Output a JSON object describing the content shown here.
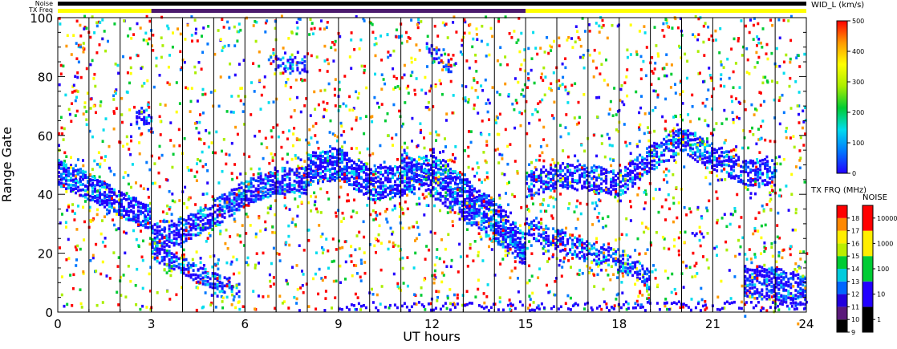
{
  "chart_data": {
    "type": "heatmap",
    "xlabel": "UT hours",
    "ylabel": "Range Gate",
    "xlim": [
      0,
      24
    ],
    "ylim": [
      0,
      100
    ],
    "x_ticks": [
      "0",
      "3",
      "6",
      "9",
      "12",
      "15",
      "18",
      "21",
      "24"
    ],
    "y_ticks": [
      "0",
      "20",
      "40",
      "60",
      "80",
      "100"
    ],
    "scan_boundaries_hours": [
      1,
      2,
      3,
      4,
      5,
      6,
      7,
      8,
      9,
      10,
      11,
      12,
      13,
      14,
      15,
      16,
      17,
      18,
      19,
      20,
      21,
      22,
      23
    ],
    "noise_label": "Noise",
    "txfreq_label": "TX Freq",
    "txfreq_segments": [
      {
        "start": 0,
        "end": 3,
        "color": "#ffff00"
      },
      {
        "start": 3,
        "end": 15,
        "color": "#4b1a6e"
      },
      {
        "start": 15,
        "end": 24,
        "color": "#ffff00"
      }
    ],
    "echo_bands": [
      {
        "points": [
          [
            0,
            47
          ],
          [
            1,
            42
          ],
          [
            2,
            36
          ],
          [
            3,
            31
          ]
        ],
        "thickness": 4,
        "density": 0.8
      },
      {
        "points": [
          [
            3,
            25
          ],
          [
            4,
            27
          ],
          [
            5,
            33
          ],
          [
            6,
            40
          ],
          [
            7,
            44
          ],
          [
            8,
            44
          ]
        ],
        "thickness": 4,
        "density": 0.8
      },
      {
        "points": [
          [
            3,
            20
          ],
          [
            4,
            15
          ],
          [
            5,
            10
          ],
          [
            5.8,
            7
          ]
        ],
        "thickness": 2.5,
        "density": 0.6
      },
      {
        "points": [
          [
            8,
            48
          ],
          [
            9,
            50
          ],
          [
            10,
            43
          ],
          [
            11,
            44
          ],
          [
            12,
            49
          ],
          [
            13,
            40
          ],
          [
            14,
            32
          ],
          [
            15,
            20
          ]
        ],
        "thickness": 5,
        "density": 0.8
      },
      {
        "points": [
          [
            11,
            52
          ],
          [
            12,
            42
          ],
          [
            13,
            34
          ],
          [
            14,
            27
          ],
          [
            15,
            18
          ]
        ],
        "thickness": 3,
        "density": 0.6
      },
      {
        "points": [
          [
            15,
            43
          ],
          [
            16,
            46
          ],
          [
            17,
            45
          ],
          [
            18,
            43
          ],
          [
            19,
            52
          ],
          [
            20,
            58
          ],
          [
            21,
            52
          ],
          [
            22,
            47
          ],
          [
            23,
            47
          ]
        ],
        "thickness": 4,
        "density": 0.7
      },
      {
        "points": [
          [
            15,
            28
          ],
          [
            16,
            24
          ],
          [
            17,
            20
          ],
          [
            18,
            17
          ],
          [
            19,
            10
          ]
        ],
        "thickness": 3,
        "density": 0.6
      },
      {
        "points": [
          [
            22,
            10
          ],
          [
            23,
            9
          ],
          [
            24,
            6
          ]
        ],
        "thickness": 5,
        "density": 0.8
      },
      {
        "points": [
          [
            6.8,
            84
          ],
          [
            7.5,
            83
          ],
          [
            8,
            83
          ]
        ],
        "thickness": 2,
        "density": 0.5
      },
      {
        "points": [
          [
            2.5,
            66
          ],
          [
            3,
            64
          ]
        ],
        "thickness": 3,
        "density": 0.6
      },
      {
        "points": [
          [
            11.8,
            90
          ],
          [
            12.6,
            82
          ]
        ],
        "thickness": 2,
        "density": 0.5
      }
    ],
    "ground_scatter_gate_range": [
      0,
      3
    ],
    "wid_colorbar": {
      "title": "WID_L (km/s)",
      "ticks": [
        "0",
        "100",
        "200",
        "300",
        "400",
        "500"
      ],
      "range": [
        0,
        500
      ],
      "colors": [
        "#2200ff",
        "#0077ff",
        "#00ddee",
        "#00cc33",
        "#aaee00",
        "#ffff00",
        "#ff9900",
        "#ff0000"
      ]
    },
    "txfreq_colorbar": {
      "title": "TX FRQ (MHz)",
      "ticks": [
        "9",
        "10",
        "11",
        "12",
        "13",
        "14",
        "15",
        "16",
        "17",
        "18"
      ],
      "colors": [
        "#000000",
        "#5a1a7a",
        "#2200dd",
        "#0066ff",
        "#00ccdd",
        "#00cc33",
        "#bbee00",
        "#ffee00",
        "#ff8800",
        "#ff0000"
      ]
    },
    "noise_colorbar": {
      "title": "NOISE",
      "ticks": [
        "1",
        "10",
        "100",
        "1000",
        "10000"
      ],
      "colors": [
        "#000000",
        "#2200ff",
        "#00cc33",
        "#ffee00",
        "#ff0000"
      ]
    }
  }
}
